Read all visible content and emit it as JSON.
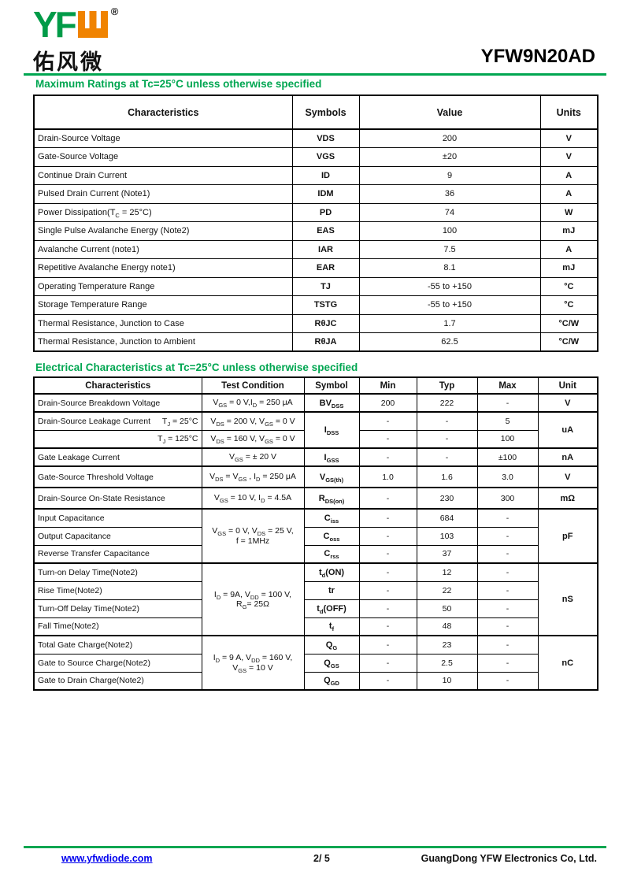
{
  "logo": {
    "green_text": "YF",
    "w_letter": "W",
    "registered": "®",
    "chinese": "佑风微"
  },
  "title": "YFW9N20AD",
  "max_ratings": {
    "heading": "Maximum Ratings at Tc=25°C unless otherwise specified",
    "columns": [
      "Characteristics",
      "Symbols",
      "Value",
      "Units"
    ],
    "rows": [
      {
        "name": "Drain-Source Voltage",
        "symbol": "VDS",
        "value": "200",
        "unit": "V"
      },
      {
        "name": "Gate-Source Voltage",
        "symbol": "VGS",
        "value": "±20",
        "unit": "V"
      },
      {
        "name": "Continue Drain Current",
        "symbol": "ID",
        "value": "9",
        "unit": "A"
      },
      {
        "name": "Pulsed Drain Current (Note1)",
        "symbol": "IDM",
        "value": "36",
        "unit": "A"
      },
      {
        "name": "Power Dissipation(T~C~ = 25°C)",
        "symbol": "PD",
        "value": "74",
        "unit": "W"
      },
      {
        "name": "Single Pulse Avalanche Energy (Note2)",
        "symbol": "EAS",
        "value": "100",
        "unit": "mJ"
      },
      {
        "name": "Avalanche Current (note1)",
        "symbol": "IAR",
        "value": "7.5",
        "unit": "A"
      },
      {
        "name": "Repetitive Avalanche Energy note1)",
        "symbol": "EAR",
        "value": "8.1",
        "unit": "mJ"
      },
      {
        "name": "Operating Temperature Range",
        "symbol": "TJ",
        "value": "-55 to +150",
        "unit": "°C"
      },
      {
        "name": "Storage Temperature Range",
        "symbol": "TSTG",
        "value": "-55 to +150",
        "unit": "°C"
      },
      {
        "name": "Thermal Resistance, Junction to Case",
        "symbol": "RθJC",
        "value": "1.7",
        "unit": "°C/W"
      },
      {
        "name": "Thermal Resistance, Junction to Ambient",
        "symbol": "RθJA",
        "value": "62.5",
        "unit": "°C/W"
      }
    ]
  },
  "electrical": {
    "heading": "Electrical Characteristics at Tc=25°C unless otherwise specified",
    "columns": [
      "Characteristics",
      "Test Condition",
      "Symbol",
      "Min",
      "Typ",
      "Max",
      "Unit"
    ],
    "rows": [
      {
        "name": "Drain-Source Breakdown Voltage",
        "cond": "V~GS~ = 0 V,I~D~ = 250 μA",
        "symbol": "BV~DSS~",
        "min": "200",
        "typ": "222",
        "max": "-",
        "unit": "V"
      },
      {
        "name": "Drain-Source Leakage Current",
        "name_right": "T~J~ = 25°C",
        "cond": "V~DS~ = 200 V, V~GS~ = 0 V",
        "symbol": "I~DSS~",
        "min": "-",
        "typ": "-",
        "max": "5",
        "unit": "uA"
      },
      {
        "name": "",
        "name_right": "T~J~ = 125°C",
        "cond": "V~DS~ = 160 V, V~GS~ = 0 V",
        "min": "-",
        "typ": "-",
        "max": "100"
      },
      {
        "name": "Gate Leakage Current",
        "cond": "V~GS~ = ± 20 V",
        "symbol": "I~GSS~",
        "min": "-",
        "typ": "-",
        "max": "±100",
        "unit": "nA"
      },
      {
        "name": "Gate-Source Threshold Voltage",
        "cond": "V~DS~ = V~GS~ , I~D~ = 250 μA",
        "symbol": "V~GS(th)~",
        "min": "1.0",
        "typ": "1.6",
        "max": "3.0",
        "unit": "V"
      },
      {
        "name": "Drain-Source On-State Resistance",
        "cond": "V~GS~ = 10 V, I~D~ = 4.5A",
        "symbol": "R~DS(on)~",
        "min": "-",
        "typ": "230",
        "max": "300",
        "unit": "mΩ"
      },
      {
        "name": "Input Capacitance",
        "cond": "V~GS~ = 0 V, V~DS~ = 25 V,\nf = 1MHz",
        "symbol": "C~iss~",
        "min": "-",
        "typ": "684",
        "max": "-",
        "unit": "pF"
      },
      {
        "name": "Output Capacitance",
        "symbol": "C~oss~",
        "min": "-",
        "typ": "103",
        "max": "-"
      },
      {
        "name": "Reverse Transfer Capacitance",
        "symbol": "C~rss~",
        "min": "-",
        "typ": "37",
        "max": "-"
      },
      {
        "name": "Turn-on Delay Time(Note2)",
        "cond": "I~D~ = 9A, V~DD~ = 100 V,\nR~G~= 25Ω",
        "symbol": "t~d~(ON)",
        "min": "-",
        "typ": "12",
        "max": "-",
        "unit": "nS"
      },
      {
        "name": "Rise Time(Note2)",
        "symbol": "tr",
        "min": "-",
        "typ": "22",
        "max": "-"
      },
      {
        "name": "Turn-Off Delay Time(Note2)",
        "symbol": "t~d~(OFF)",
        "min": "-",
        "typ": "50",
        "max": "-"
      },
      {
        "name": "Fall Time(Note2)",
        "symbol": "t~f~",
        "min": "-",
        "typ": "48",
        "max": "-"
      },
      {
        "name": "Total Gate Charge(Note2)",
        "cond": "I~D~ = 9 A, V~DD~ = 160 V,\nV~GS~ = 10 V",
        "symbol": "Q~G~",
        "min": "-",
        "typ": "23",
        "max": "-",
        "unit": "nC"
      },
      {
        "name": "Gate to Source Charge(Note2)",
        "symbol": "Q~GS~",
        "min": "-",
        "typ": "2.5",
        "max": "-"
      },
      {
        "name": "Gate to Drain Charge(Note2)",
        "symbol": "Q~GD~",
        "min": "-",
        "typ": "10",
        "max": "-"
      }
    ]
  },
  "footer": {
    "website": "www.yfwdiode.com",
    "page": "2/ 5",
    "company": "GuangDong YFW Electronics Co, Ltd."
  }
}
